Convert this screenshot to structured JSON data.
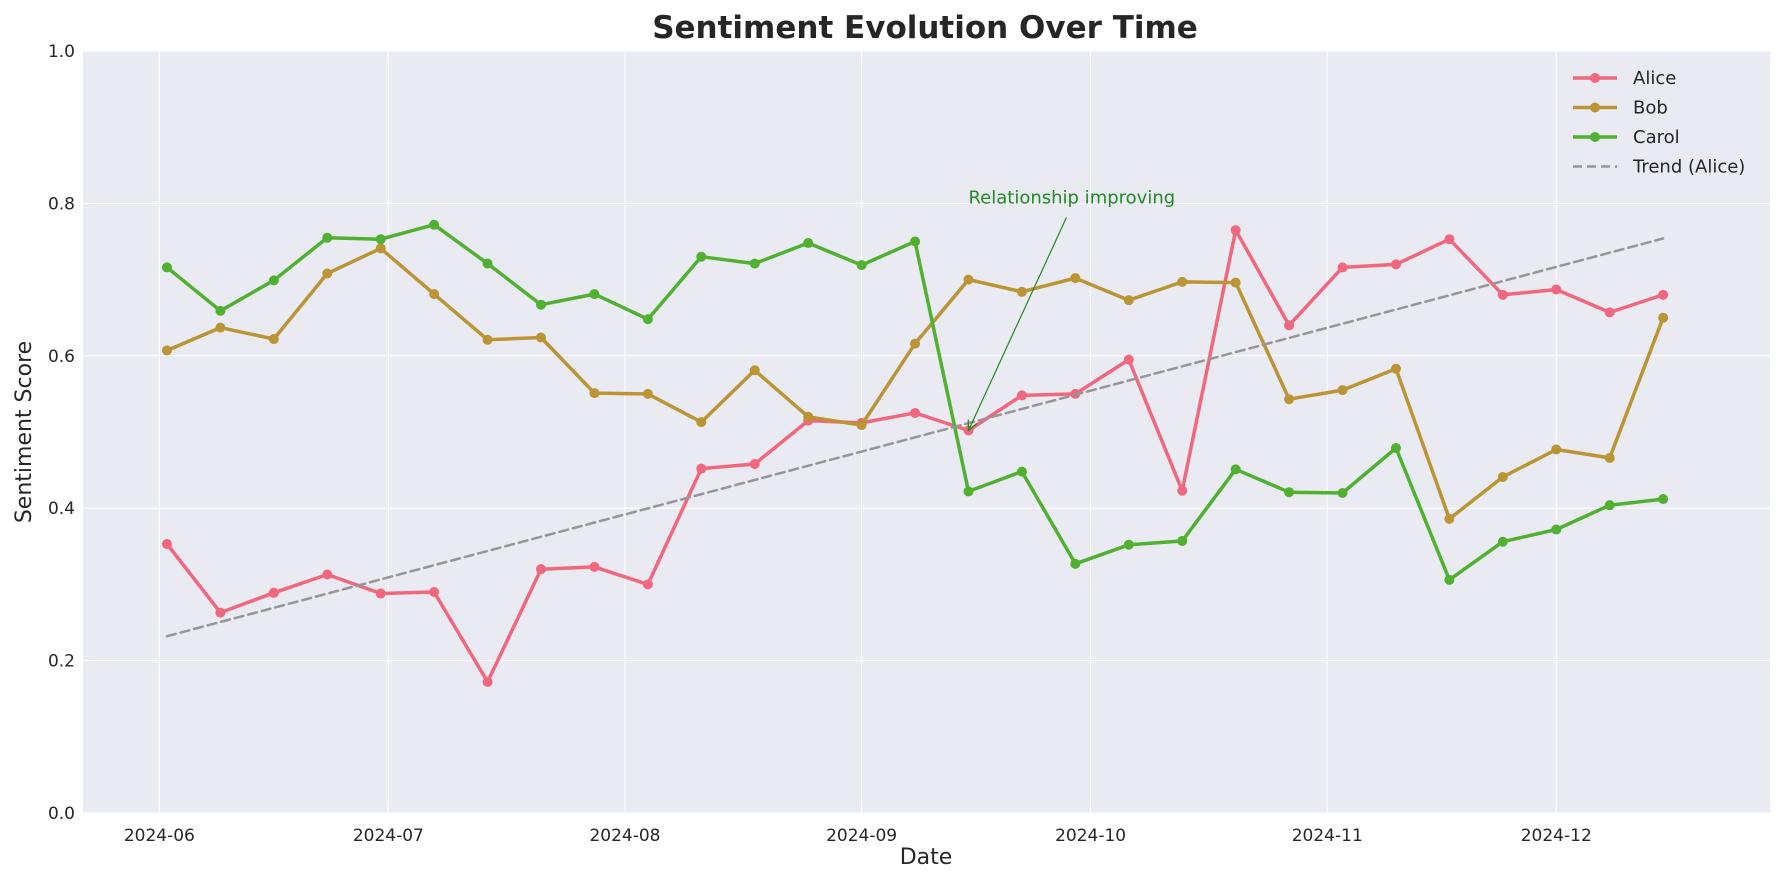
{
  "chart_data": {
    "type": "line",
    "title": "Sentiment Evolution Over Time",
    "xlabel": "Date",
    "ylabel": "Sentiment Score",
    "ylim": [
      0,
      1
    ],
    "xlim": [
      "2024-05-22",
      "2024-12-29"
    ],
    "y_ticks": [
      0.0,
      0.2,
      0.4,
      0.6,
      0.8,
      1.0
    ],
    "y_tick_labels": [
      "0.0",
      "0.2",
      "0.4",
      "0.6",
      "0.8",
      "1.0"
    ],
    "x_ticks": [
      "2024-06-01",
      "2024-07-01",
      "2024-08-01",
      "2024-09-01",
      "2024-10-01",
      "2024-11-01",
      "2024-12-01"
    ],
    "x_tick_labels": [
      "2024-06",
      "2024-07",
      "2024-08",
      "2024-09",
      "2024-10",
      "2024-11",
      "2024-12"
    ],
    "grid": true,
    "legend_position": "top-right",
    "background": "#eaeaf2",
    "x": [
      "2024-06-02",
      "2024-06-09",
      "2024-06-16",
      "2024-06-23",
      "2024-06-30",
      "2024-07-07",
      "2024-07-14",
      "2024-07-21",
      "2024-07-28",
      "2024-08-04",
      "2024-08-11",
      "2024-08-18",
      "2024-08-25",
      "2024-09-01",
      "2024-09-08",
      "2024-09-15",
      "2024-09-22",
      "2024-09-29",
      "2024-10-06",
      "2024-10-13",
      "2024-10-20",
      "2024-10-27",
      "2024-11-03",
      "2024-11-10",
      "2024-11-17",
      "2024-11-24",
      "2024-12-01",
      "2024-12-08",
      "2024-12-15"
    ],
    "series": [
      {
        "name": "Alice",
        "color": "#f0677e",
        "style": "line-marker",
        "values": [
          0.353,
          0.263,
          0.289,
          0.313,
          0.288,
          0.29,
          0.172,
          0.32,
          0.323,
          0.3,
          0.452,
          0.458,
          0.515,
          0.512,
          0.525,
          0.502,
          0.548,
          0.55,
          0.595,
          0.423,
          0.765,
          0.64,
          0.716,
          0.72,
          0.753,
          0.68,
          0.687,
          0.657,
          0.68
        ]
      },
      {
        "name": "Bob",
        "color": "#bb9433",
        "style": "line-marker",
        "values": [
          0.607,
          0.637,
          0.622,
          0.708,
          0.741,
          0.681,
          0.621,
          0.624,
          0.551,
          0.55,
          0.513,
          0.581,
          0.52,
          0.509,
          0.616,
          0.7,
          0.684,
          0.702,
          0.673,
          0.697,
          0.696,
          0.543,
          0.555,
          0.583,
          0.386,
          0.441,
          0.477,
          0.466,
          0.65
        ]
      },
      {
        "name": "Carol",
        "color": "#50b131",
        "style": "line-marker",
        "values": [
          0.716,
          0.659,
          0.699,
          0.755,
          0.753,
          0.772,
          0.721,
          0.667,
          0.681,
          0.648,
          0.73,
          0.721,
          0.748,
          0.719,
          0.75,
          0.422,
          0.448,
          0.327,
          0.352,
          0.357,
          0.451,
          0.421,
          0.42,
          0.479,
          0.306,
          0.356,
          0.372,
          0.404,
          0.412
        ]
      },
      {
        "name": "Trend (Alice)",
        "color": "#969696",
        "style": "dashed",
        "x": [
          "2024-06-02",
          "2024-12-15"
        ],
        "values": [
          0.232,
          0.754
        ]
      }
    ],
    "annotations": [
      {
        "text": "Relationship improving",
        "color": "#228b22",
        "point": {
          "x": "2024-09-15",
          "y": 0.502
        },
        "text_anchor": {
          "x": "2024-09-15",
          "y": 0.8
        }
      }
    ]
  }
}
